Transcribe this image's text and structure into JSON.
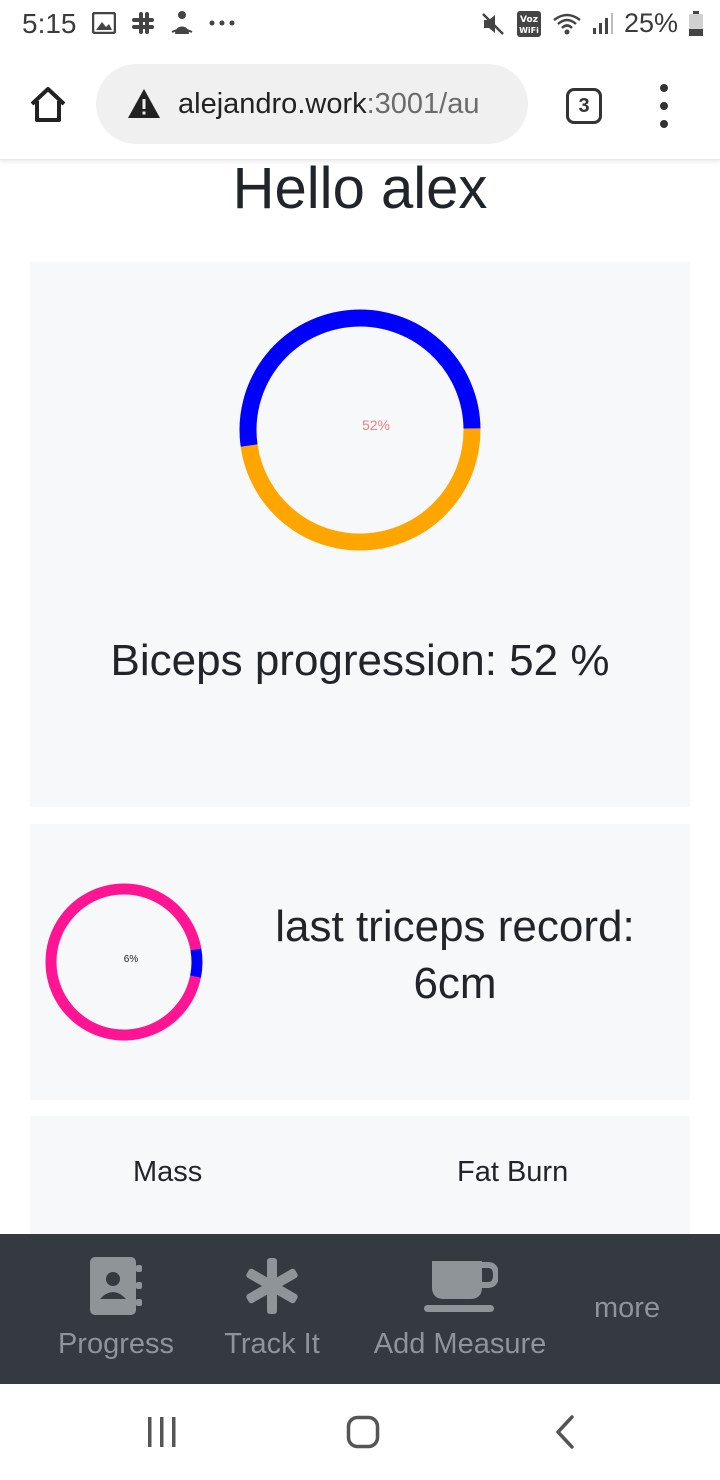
{
  "status_bar": {
    "time": "5:15",
    "battery": "25%",
    "wifi_label": "Voz WiFi"
  },
  "browser": {
    "url_host": "alejandro.work",
    "url_rest": ":3001/au",
    "tab_count": "3"
  },
  "page": {
    "greeting": "Hello alex"
  },
  "biceps": {
    "percent_label": "52%",
    "caption": "Biceps progression: 52 %",
    "progress": 0.52,
    "colors": {
      "progress": "#0000ff",
      "remainder": "#ffa500",
      "label": "#f08080"
    }
  },
  "triceps": {
    "percent_label": "6%",
    "caption": "last triceps record: 6cm",
    "progress": 0.06,
    "colors": {
      "progress": "#0000ff",
      "remainder": "#ff1493"
    }
  },
  "plans": {
    "items": [
      "Mass",
      "Fat Burn"
    ]
  },
  "bottom_nav": {
    "items": [
      {
        "label": "Progress",
        "icon": "contact-book-icon"
      },
      {
        "label": "Track It",
        "icon": "asterisk-icon"
      },
      {
        "label": "Add Measure",
        "icon": "coffee-cup-icon"
      }
    ],
    "more": "more",
    "background": "#343a40"
  }
}
